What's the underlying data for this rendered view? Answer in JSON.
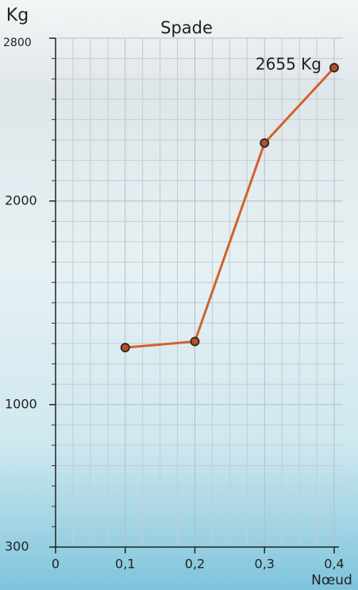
{
  "chart_data": {
    "type": "line",
    "title": "Spade",
    "y_label": "Kg",
    "x_label": "Nœud",
    "x": [
      0.1,
      0.2,
      0.3,
      0.4
    ],
    "series": [
      {
        "name": "Spade",
        "color": "#d2622b",
        "values": [
          1280,
          1310,
          2285,
          2655
        ]
      }
    ],
    "value_labels": [
      null,
      null,
      null,
      "2655 Kg"
    ],
    "xlim": [
      0,
      0.4
    ],
    "ylim": [
      300,
      2800
    ],
    "xticks": [
      0,
      {
        "value": 0.1,
        "label": "0,1"
      },
      {
        "value": 0.2,
        "label": "0,2"
      },
      {
        "value": 0.3,
        "label": "0,3"
      },
      {
        "value": 0.4,
        "label": "0,4"
      }
    ],
    "yticks": [
      300,
      1000,
      2000,
      2800
    ],
    "x_minor_ticks": [
      0.025,
      0.05,
      0.075,
      0.125,
      0.15,
      0.175,
      0.225,
      0.25,
      0.275,
      0.325,
      0.35,
      0.375
    ],
    "y_minor_ticks": [
      400,
      500,
      600,
      700,
      800,
      900,
      1100,
      1200,
      1300,
      1400,
      1500,
      1600,
      1700,
      1800,
      1900,
      2100,
      2200,
      2300,
      2400,
      2500,
      2600,
      2700
    ],
    "grid": true
  }
}
